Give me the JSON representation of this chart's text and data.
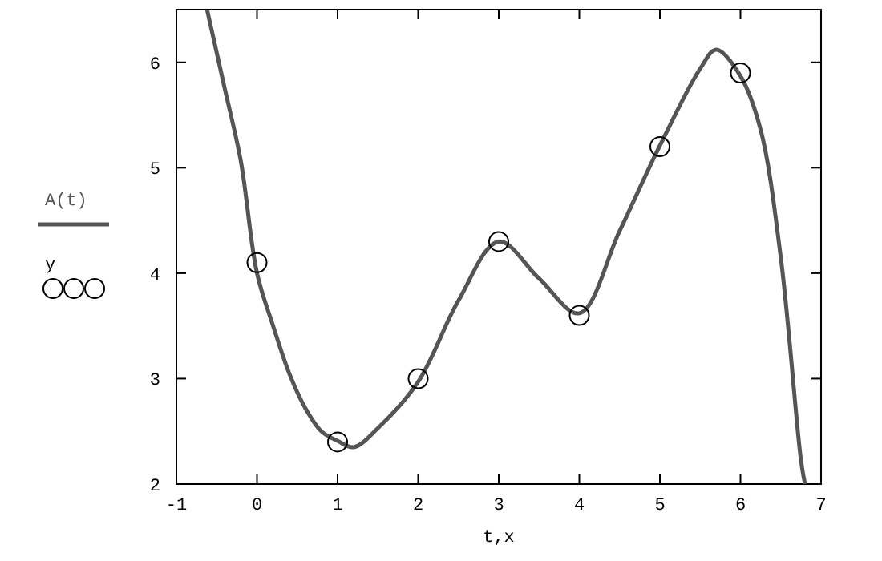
{
  "chart_data": {
    "type": "line",
    "xlabel": "t,x",
    "xlim": [
      -1,
      7
    ],
    "xticks": [
      -1,
      0,
      1,
      2,
      3,
      4,
      5,
      6,
      7
    ],
    "ylim": [
      2,
      6.5
    ],
    "yticks": [
      2,
      3,
      4,
      5,
      6
    ],
    "grid": false,
    "legend": "left",
    "series": [
      {
        "name": "A(t)",
        "color": "#555555",
        "line_style": "solid",
        "marker": "none",
        "x": [
          -0.62,
          -0.4,
          -0.2,
          0,
          0.2,
          0.4,
          0.6,
          0.8,
          1,
          1.2,
          1.5,
          2,
          2.5,
          3,
          3.5,
          4,
          4.5,
          5,
          5.5,
          5.7,
          6,
          6.25,
          6.5,
          6.75,
          6.8
        ],
        "values": [
          6.5,
          5.75,
          5.06,
          4.0,
          3.5,
          3.05,
          2.72,
          2.5,
          2.41,
          2.35,
          2.53,
          2.97,
          3.74,
          4.3,
          3.95,
          3.62,
          4.4,
          5.21,
          5.94,
          6.12,
          5.87,
          5.36,
          4.15,
          2.23,
          2.0
        ]
      },
      {
        "name": "y",
        "type": "scatter",
        "color": "#000000",
        "marker": "circle",
        "x": [
          0,
          1,
          2,
          3,
          4,
          5,
          6
        ],
        "values": [
          4.1,
          2.4,
          3,
          4.3,
          3.6,
          5.2,
          5.9
        ]
      }
    ]
  }
}
